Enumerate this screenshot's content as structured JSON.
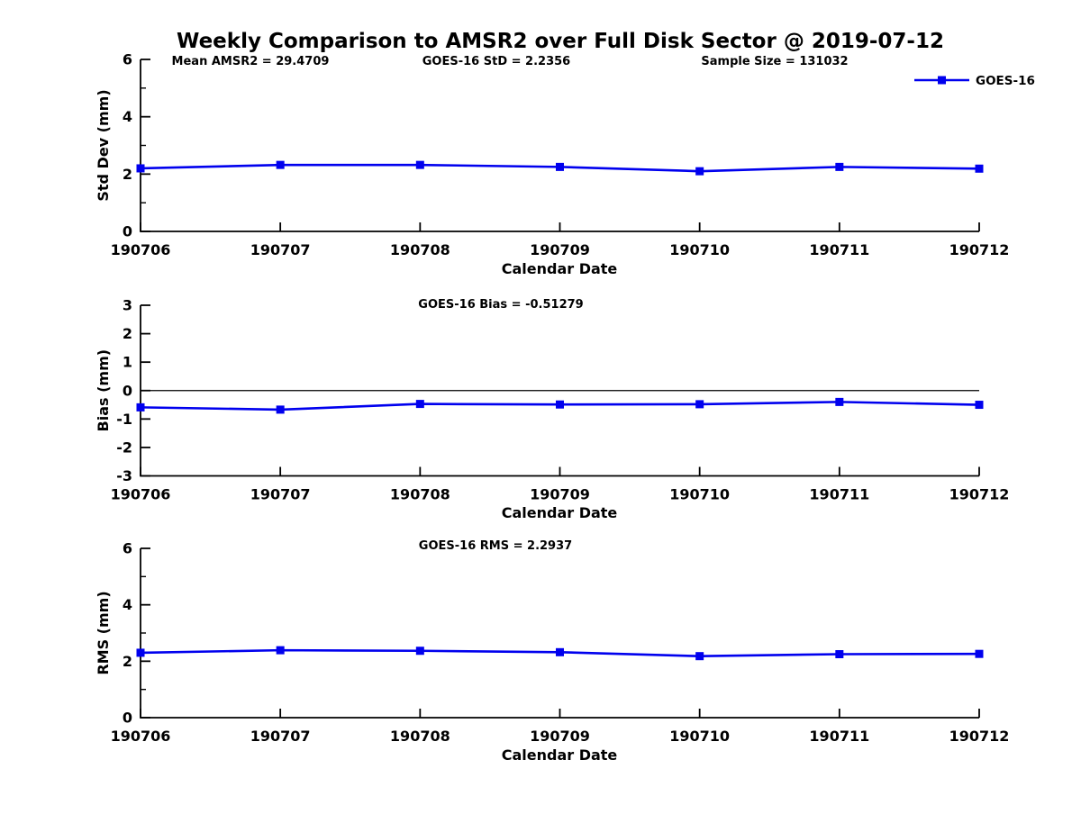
{
  "title": "Weekly Comparison to AMSR2 over Full Disk Sector @ 2019-07-12",
  "series_color": "#0000EE",
  "axis_color": "#000000",
  "legend": {
    "label": "GOES-16",
    "position": "top-right"
  },
  "chart_data": [
    {
      "type": "line",
      "ylabel": "Std Dev (mm)",
      "xlabel": "Calendar Date",
      "categories": [
        "190706",
        "190707",
        "190708",
        "190709",
        "190710",
        "190711",
        "190712"
      ],
      "series": [
        {
          "name": "GOES-16",
          "values": [
            2.2,
            2.32,
            2.32,
            2.25,
            2.1,
            2.25,
            2.19
          ]
        }
      ],
      "ylim": [
        0,
        6
      ],
      "yticks": [
        0,
        2,
        4,
        6
      ],
      "yminorticks": [
        1,
        3,
        5
      ],
      "zero_line": false,
      "grid": false,
      "annotations": [
        "Mean AMSR2 = 29.4709",
        "GOES-16 StD = 2.2356",
        "Sample Size = 131032"
      ]
    },
    {
      "type": "line",
      "ylabel": "Bias (mm)",
      "xlabel": "Calendar Date",
      "categories": [
        "190706",
        "190707",
        "190708",
        "190709",
        "190710",
        "190711",
        "190712"
      ],
      "series": [
        {
          "name": "GOES-16",
          "values": [
            -0.59,
            -0.67,
            -0.47,
            -0.49,
            -0.48,
            -0.4,
            -0.5
          ]
        }
      ],
      "ylim": [
        -3,
        3
      ],
      "yticks": [
        -3,
        -2,
        -1,
        0,
        1,
        2,
        3
      ],
      "yminorticks": [],
      "zero_line": true,
      "grid": false,
      "annotations": [
        "GOES-16 Bias  = -0.51279"
      ]
    },
    {
      "type": "line",
      "ylabel": "RMS (mm)",
      "xlabel": "Calendar Date",
      "categories": [
        "190706",
        "190707",
        "190708",
        "190709",
        "190710",
        "190711",
        "190712"
      ],
      "series": [
        {
          "name": "GOES-16",
          "values": [
            2.3,
            2.39,
            2.37,
            2.32,
            2.18,
            2.25,
            2.26
          ]
        }
      ],
      "ylim": [
        0,
        6
      ],
      "yticks": [
        0,
        2,
        4,
        6
      ],
      "yminorticks": [
        1,
        3,
        5
      ],
      "zero_line": false,
      "grid": false,
      "annotations": [
        "GOES-16 RMS = 2.2937"
      ]
    }
  ]
}
